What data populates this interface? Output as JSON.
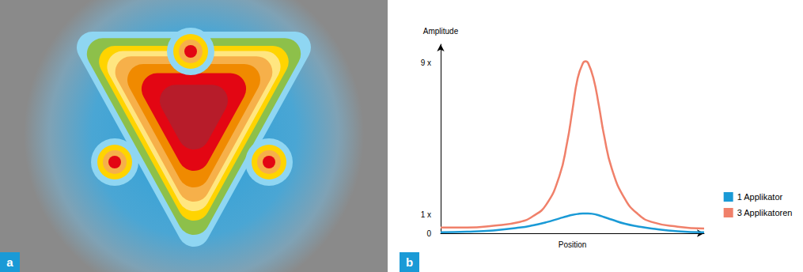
{
  "diagram": {
    "panel_label": "a"
  },
  "chart_data": {
    "type": "line",
    "panel_label": "b",
    "y_label": "Amplitude",
    "x_label": "Position",
    "x": [
      0,
      10,
      20,
      30,
      35,
      40,
      45,
      48,
      50,
      52,
      54,
      55,
      56,
      58,
      60,
      62,
      65,
      70,
      75,
      80,
      90,
      100
    ],
    "xlim": [
      0,
      100
    ],
    "ylim": [
      0,
      10
    ],
    "yticks": [
      0,
      {
        "value": 1,
        "label": "1 x"
      },
      {
        "value": 9,
        "label": "9 x"
      }
    ],
    "tick_labels": "y",
    "grid": false,
    "legend": "right",
    "series": [
      {
        "name": "1 Applikator",
        "color": "#1a9ad6",
        "values": [
          0.05,
          0.08,
          0.15,
          0.3,
          0.42,
          0.58,
          0.78,
          0.9,
          0.97,
          1.02,
          1.05,
          1.05,
          1.05,
          1.02,
          0.95,
          0.86,
          0.72,
          0.5,
          0.36,
          0.25,
          0.1,
          0.05
        ]
      },
      {
        "name": "3 Applikatoren",
        "color": "#f0806a",
        "values": [
          0.3,
          0.3,
          0.4,
          0.6,
          0.9,
          1.5,
          3.0,
          4.8,
          6.5,
          8.2,
          9.0,
          9.1,
          9.0,
          8.2,
          6.8,
          5.2,
          3.4,
          1.8,
          1.0,
          0.6,
          0.35,
          0.25
        ]
      }
    ]
  }
}
